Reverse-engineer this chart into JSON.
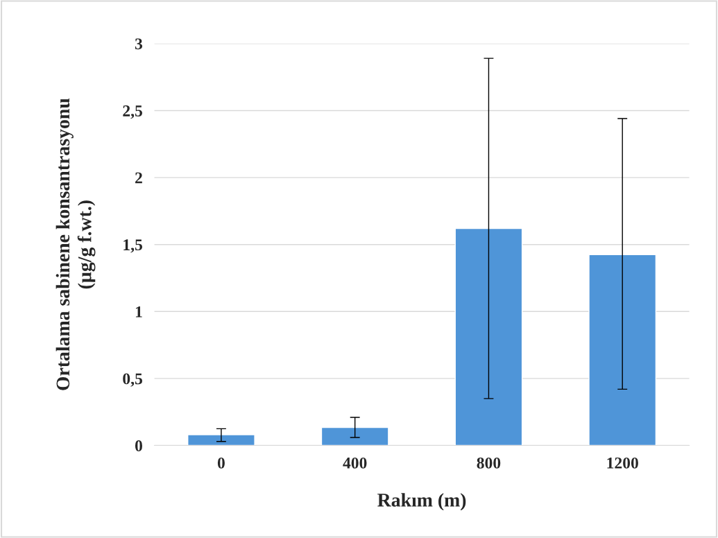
{
  "chart_data": {
    "type": "bar",
    "xlabel": "Rakım (m)",
    "ylabel": "Ortalama sabinene konsantrasyonu\n(µg/g f.wt.)",
    "categories": [
      "0",
      "400",
      "800",
      "1200"
    ],
    "values": [
      0.08,
      0.135,
      1.62,
      1.425
    ],
    "errors": [
      [
        0.03,
        0.125
      ],
      [
        0.06,
        0.21
      ],
      [
        0.35,
        2.89
      ],
      [
        0.42,
        2.44
      ]
    ],
    "color": "#4f95d8",
    "ylim": [
      0,
      3
    ],
    "yticks": [
      0,
      {
        "value": 0.5,
        "label": "0,5"
      },
      1,
      {
        "value": 1.5,
        "label": "1,5"
      },
      2,
      {
        "value": 2.5,
        "label": "2,5"
      },
      3
    ],
    "grid": "y"
  }
}
